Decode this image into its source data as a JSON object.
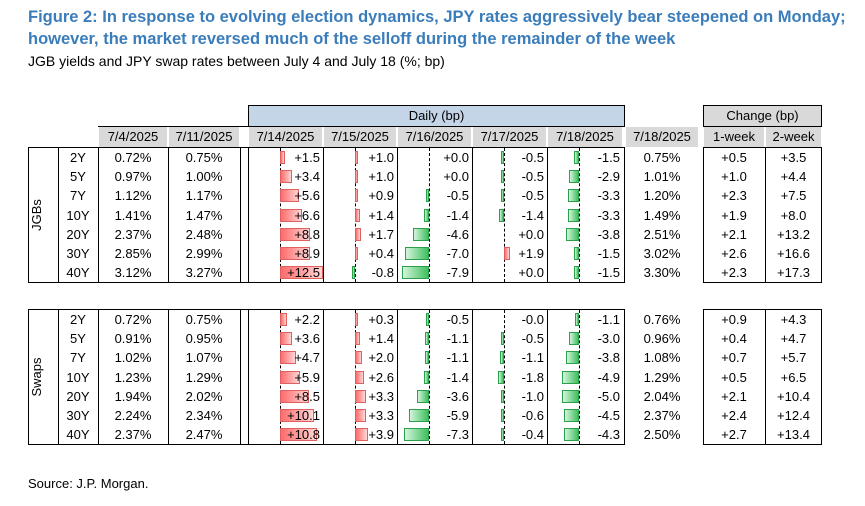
{
  "title": "Figure 2: In response to evolving election dynamics, JPY rates aggressively bear steepened on Monday; however, the market reversed much of the selloff during the remainder of the week",
  "subtitle": "JGB yields and JPY swap rates between July 4 and July 18 (%; bp)",
  "source": "Source: J.P. Morgan.",
  "header": {
    "daily_group": "Daily (bp)",
    "change_group": "Change (bp)",
    "columns": [
      "7/4/2025",
      "7/11/2025",
      "7/14/2025",
      "7/15/2025",
      "7/16/2025",
      "7/17/2025",
      "7/18/2025",
      "7/18/2025",
      "1-week",
      "2-week"
    ]
  },
  "sections": [
    {
      "label": "JGBs",
      "rows": [
        {
          "tenor": "2Y",
          "d1": "0.72%",
          "d2": "0.75%",
          "daily": [
            1.5,
            1.0,
            0.0,
            -0.5,
            -1.5
          ],
          "daily_txt": [
            "+1.5",
            "+1.0",
            "+0.0",
            "-0.5",
            "-1.5"
          ],
          "d3": "0.75%",
          "w1": "+0.5",
          "w2": "+3.5"
        },
        {
          "tenor": "5Y",
          "d1": "0.97%",
          "d2": "1.00%",
          "daily": [
            3.4,
            1.0,
            0.0,
            -0.5,
            -2.9
          ],
          "daily_txt": [
            "+3.4",
            "+1.0",
            "+0.0",
            "-0.5",
            "-2.9"
          ],
          "d3": "1.01%",
          "w1": "+1.0",
          "w2": "+4.4"
        },
        {
          "tenor": "7Y",
          "d1": "1.12%",
          "d2": "1.17%",
          "daily": [
            5.6,
            0.9,
            -0.5,
            -0.5,
            -3.3
          ],
          "daily_txt": [
            "+5.6",
            "+0.9",
            "-0.5",
            "-0.5",
            "-3.3"
          ],
          "d3": "1.20%",
          "w1": "+2.3",
          "w2": "+7.5"
        },
        {
          "tenor": "10Y",
          "d1": "1.41%",
          "d2": "1.47%",
          "daily": [
            6.6,
            1.4,
            -1.4,
            -1.4,
            -3.3
          ],
          "daily_txt": [
            "+6.6",
            "+1.4",
            "-1.4",
            "-1.4",
            "-3.3"
          ],
          "d3": "1.49%",
          "w1": "+1.9",
          "w2": "+8.0"
        },
        {
          "tenor": "20Y",
          "d1": "2.37%",
          "d2": "2.48%",
          "daily": [
            8.8,
            1.7,
            -4.6,
            0.0,
            -3.8
          ],
          "daily_txt": [
            "+8.8",
            "+1.7",
            "-4.6",
            "+0.0",
            "-3.8"
          ],
          "d3": "2.51%",
          "w1": "+2.1",
          "w2": "+13.2"
        },
        {
          "tenor": "30Y",
          "d1": "2.85%",
          "d2": "2.99%",
          "daily": [
            8.9,
            0.4,
            -7.0,
            1.9,
            -1.5
          ],
          "daily_txt": [
            "+8.9",
            "+0.4",
            "-7.0",
            "+1.9",
            "-1.5"
          ],
          "d3": "3.02%",
          "w1": "+2.6",
          "w2": "+16.6"
        },
        {
          "tenor": "40Y",
          "d1": "3.12%",
          "d2": "3.27%",
          "daily": [
            12.5,
            -0.8,
            -7.9,
            0.0,
            -1.5
          ],
          "daily_txt": [
            "+12.5",
            "-0.8",
            "-7.9",
            "+0.0",
            "-1.5"
          ],
          "d3": "3.30%",
          "w1": "+2.3",
          "w2": "+17.3"
        }
      ]
    },
    {
      "label": "Swaps",
      "rows": [
        {
          "tenor": "2Y",
          "d1": "0.72%",
          "d2": "0.75%",
          "daily": [
            2.2,
            0.3,
            -0.5,
            -0.0,
            -1.1
          ],
          "daily_txt": [
            "+2.2",
            "+0.3",
            "-0.5",
            "-0.0",
            "-1.1"
          ],
          "d3": "0.76%",
          "w1": "+0.9",
          "w2": "+4.3"
        },
        {
          "tenor": "5Y",
          "d1": "0.91%",
          "d2": "0.95%",
          "daily": [
            3.6,
            1.4,
            -1.1,
            -0.5,
            -3.0
          ],
          "daily_txt": [
            "+3.6",
            "+1.4",
            "-1.1",
            "-0.5",
            "-3.0"
          ],
          "d3": "0.96%",
          "w1": "+0.4",
          "w2": "+4.7"
        },
        {
          "tenor": "7Y",
          "d1": "1.02%",
          "d2": "1.07%",
          "daily": [
            4.7,
            2.0,
            -1.1,
            -1.1,
            -3.8
          ],
          "daily_txt": [
            "+4.7",
            "+2.0",
            "-1.1",
            "-1.1",
            "-3.8"
          ],
          "d3": "1.08%",
          "w1": "+0.7",
          "w2": "+5.7"
        },
        {
          "tenor": "10Y",
          "d1": "1.23%",
          "d2": "1.29%",
          "daily": [
            5.9,
            2.6,
            -1.4,
            -1.8,
            -4.9
          ],
          "daily_txt": [
            "+5.9",
            "+2.6",
            "-1.4",
            "-1.8",
            "-4.9"
          ],
          "d3": "1.29%",
          "w1": "+0.5",
          "w2": "+6.5"
        },
        {
          "tenor": "20Y",
          "d1": "1.94%",
          "d2": "2.02%",
          "daily": [
            8.5,
            3.3,
            -3.6,
            -1.0,
            -5.0
          ],
          "daily_txt": [
            "+8.5",
            "+3.3",
            "-3.6",
            "-1.0",
            "-5.0"
          ],
          "d3": "2.04%",
          "w1": "+2.1",
          "w2": "+10.4"
        },
        {
          "tenor": "30Y",
          "d1": "2.24%",
          "d2": "2.34%",
          "daily": [
            10.1,
            3.3,
            -5.9,
            -0.6,
            -4.5
          ],
          "daily_txt": [
            "+10.1",
            "+3.3",
            "-5.9",
            "-0.6",
            "-4.5"
          ],
          "d3": "2.37%",
          "w1": "+2.4",
          "w2": "+12.4"
        },
        {
          "tenor": "40Y",
          "d1": "2.37%",
          "d2": "2.47%",
          "daily": [
            10.8,
            3.9,
            -7.3,
            -0.4,
            -4.3
          ],
          "daily_txt": [
            "+10.8",
            "+3.9",
            "-7.3",
            "-0.4",
            "-4.3"
          ],
          "d3": "2.50%",
          "w1": "+2.7",
          "w2": "+13.4"
        }
      ]
    }
  ],
  "colors": {
    "title": "#3a7dba",
    "positive_bar": "#ff6b6b",
    "negative_bar": "#3fbf5f",
    "header_fill": "#d9d9d9",
    "daily_header_fill": "#c5d5e8"
  }
}
